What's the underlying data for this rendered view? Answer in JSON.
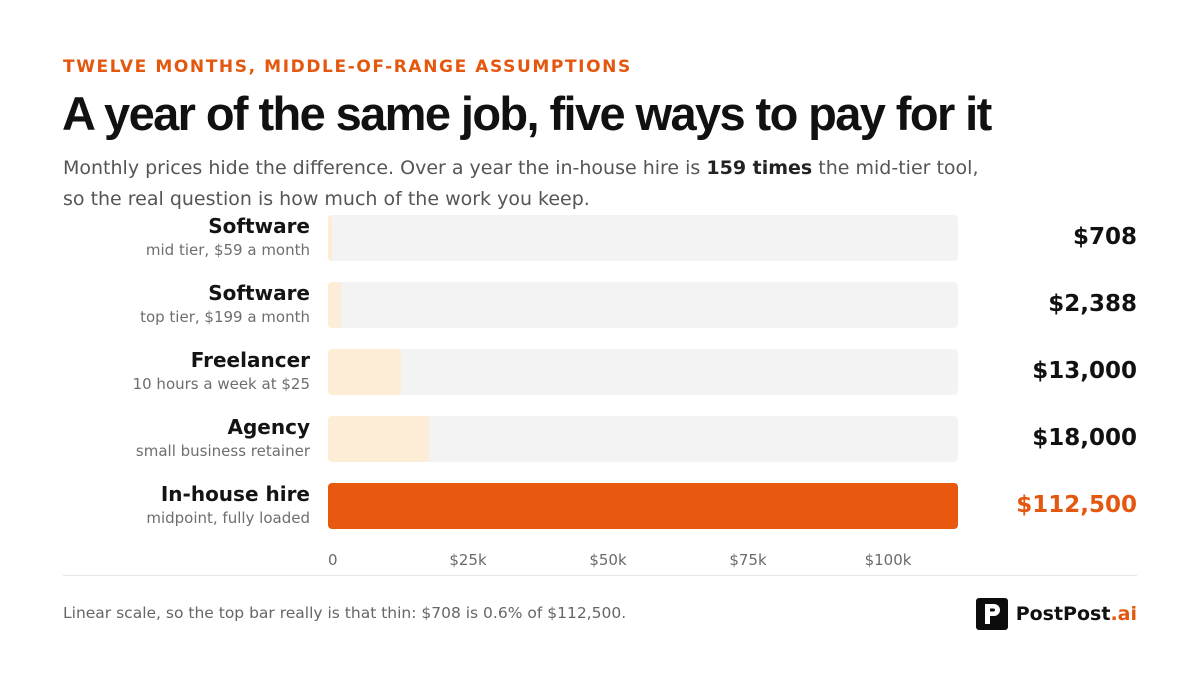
{
  "header": {
    "eyebrow": "TWELVE MONTHS, MIDDLE-OF-RANGE ASSUMPTIONS",
    "title": "A year of the same job, five ways to pay for it",
    "subtitle_before": "Monthly prices hide the difference. Over a year the in-house hire is ",
    "subtitle_bold": "159 times",
    "subtitle_after": " the mid-tier tool, so the real question is how much of the work you keep."
  },
  "chart_data": {
    "type": "bar",
    "orientation": "horizontal",
    "categories": [
      "Software",
      "Software",
      "Freelancer",
      "Agency",
      "In-house hire"
    ],
    "category_sublabels": [
      "mid tier, $59 a month",
      "top tier, $199 a month",
      "10 hours a week at $25",
      "small business retainer",
      "midpoint, fully loaded"
    ],
    "values": [
      708,
      2388,
      13000,
      18000,
      112500
    ],
    "value_labels": [
      "$708",
      "$2,388",
      "$13,000",
      "$18,000",
      "$112,500"
    ],
    "xlim": [
      0,
      112500
    ],
    "xticks": [
      0,
      25000,
      50000,
      75000,
      100000
    ],
    "xtick_labels": [
      "0",
      "$25k",
      "$50k",
      "$75k",
      "$100k"
    ],
    "scale": "linear",
    "grid": false,
    "colors": {
      "track": "#f3f3f3",
      "bar_default": "#fdecd6",
      "bar_highlight": "#e8580f",
      "value_default": "#111111",
      "value_highlight": "#e4570e"
    },
    "highlight_index": 4
  },
  "footer": {
    "note": "Linear scale, so the top bar really is that thin: $708 is 0.6% of $112,500.",
    "brand_name": "PostPost",
    "brand_tld": ".ai",
    "brand_icon": "postpost-logo-icon"
  }
}
